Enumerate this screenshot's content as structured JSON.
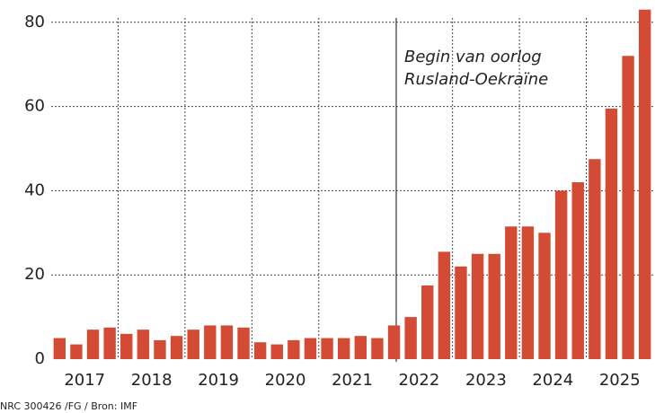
{
  "chart_data": {
    "type": "bar",
    "categories": [
      null,
      null,
      null,
      null,
      null,
      null,
      null,
      null,
      null,
      null,
      null,
      null,
      null,
      null,
      null,
      null,
      null,
      null,
      null,
      null,
      null,
      null,
      null,
      null,
      null,
      null,
      null,
      null,
      null,
      null,
      null,
      null,
      null,
      null,
      null,
      null
    ],
    "x_groups": [
      "2017",
      "2018",
      "2019",
      "2020",
      "2021",
      "2022",
      "2023",
      "2024",
      "2025"
    ],
    "values": [
      5,
      3.5,
      7,
      7.5,
      6,
      7,
      4.5,
      5.5,
      7,
      8,
      8,
      7.5,
      4,
      3.5,
      4.5,
      5,
      5,
      5,
      5.5,
      5,
      8,
      10,
      17.5,
      25.5,
      22,
      25,
      25,
      31.5,
      31.5,
      30,
      40,
      42,
      47.5,
      59.5,
      72,
      83
    ],
    "color": "#d44b35",
    "ylim": [
      0,
      84
    ],
    "yticks": [
      0,
      20,
      40,
      60,
      80
    ],
    "grid": true,
    "annotation": [
      "Begin van oorlog",
      "Rusland-Oekraïne"
    ],
    "source": "NRC 300426 /FG / Bron: IMF"
  }
}
